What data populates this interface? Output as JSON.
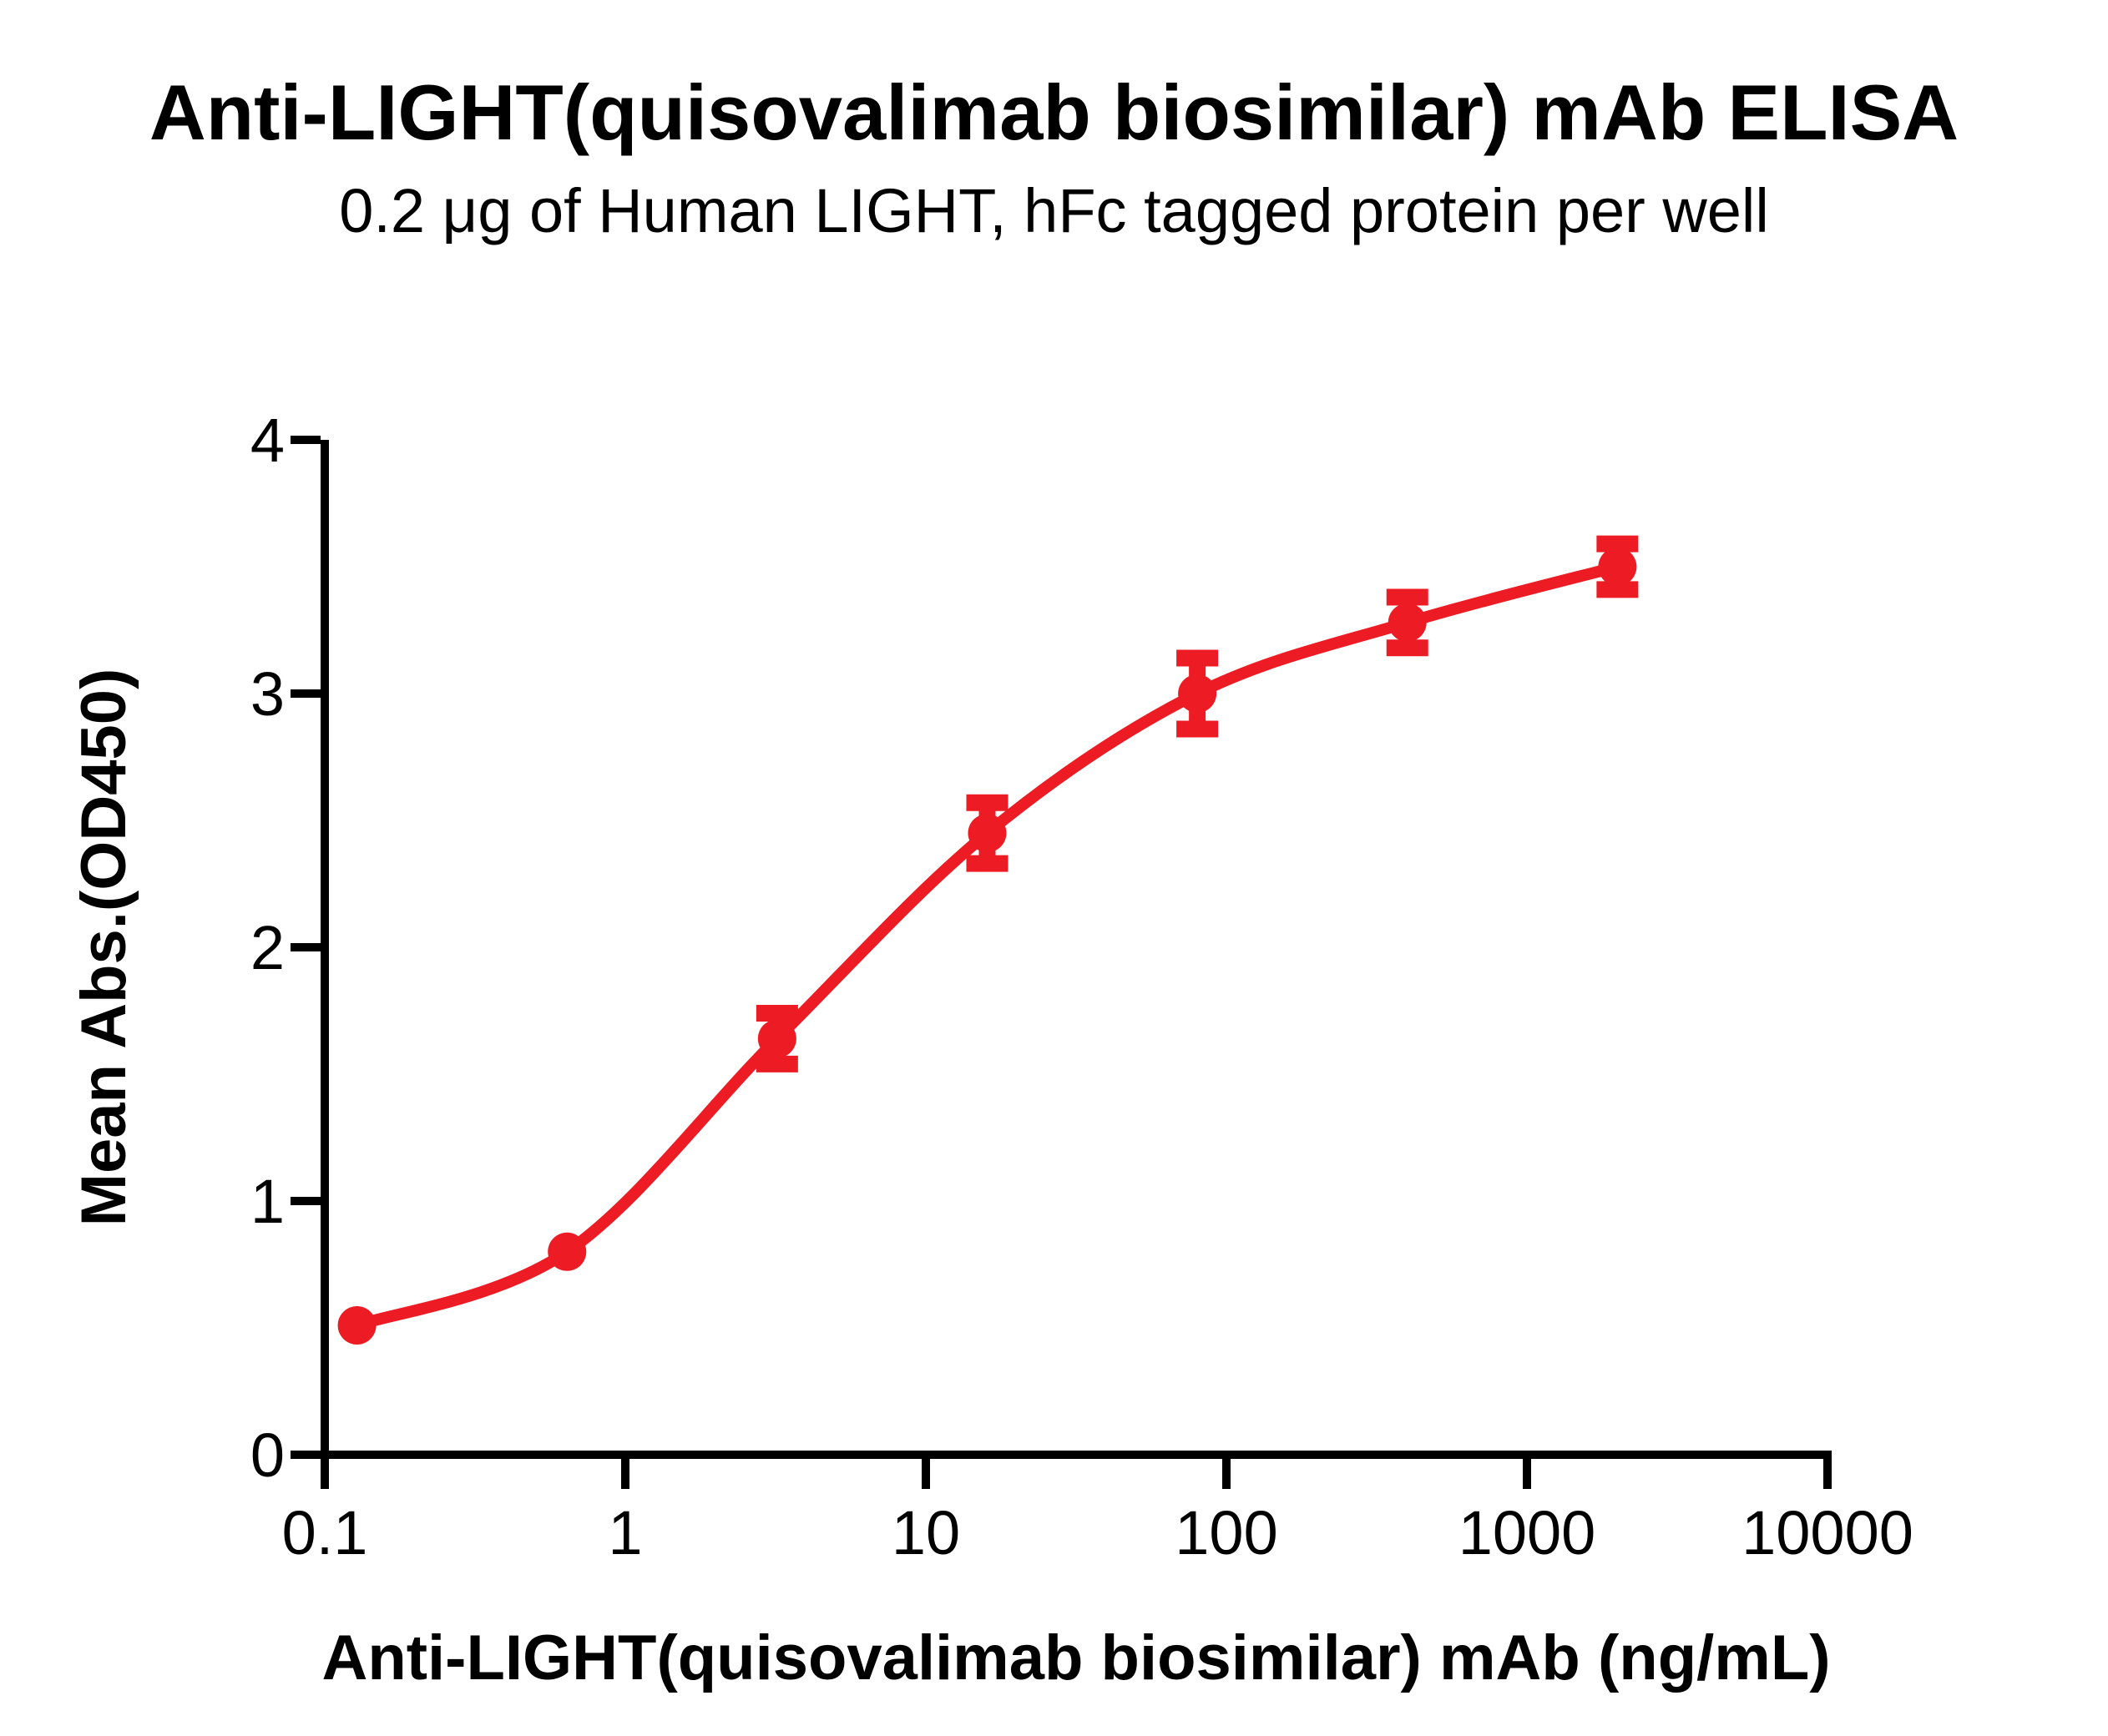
{
  "page": {
    "background_color": "#FFFFFF",
    "axis_color": "#000000"
  },
  "chart_data": {
    "type": "scatter",
    "title": "Anti-LIGHT(quisovalimab biosimilar) mAb ELISA",
    "subtitle": "0.2 μg of Human LIGHT, hFc tagged protein per well",
    "xlabel": "Anti-LIGHT(quisovalimab biosimilar) mAb (ng/mL)",
    "ylabel": "Mean Abs.(OD450)",
    "x_scale": "log10",
    "xlim": [
      0.1,
      10000
    ],
    "ylim": [
      0,
      4
    ],
    "x_ticks": [
      "0.1",
      "1",
      "10",
      "100",
      "1000",
      "10000"
    ],
    "x_tick_values": [
      0.1,
      1,
      10,
      100,
      1000,
      10000
    ],
    "y_ticks": [
      0,
      1,
      2,
      3,
      4
    ],
    "grid": false,
    "legend_position": "none",
    "series": [
      {
        "name": "Anti-LIGHT(quisovalimab biosimilar) mAb",
        "color": "#ED1C24",
        "marker": "circle",
        "fit": "4PL sigmoidal dose-response",
        "x": [
          0.128,
          0.64,
          3.2,
          16,
          80,
          400,
          2000
        ],
        "y": [
          0.51,
          0.8,
          1.64,
          2.45,
          3.0,
          3.28,
          3.5
        ],
        "y_err": [
          0,
          0,
          0.1,
          0.12,
          0.14,
          0.1,
          0.09
        ]
      }
    ]
  }
}
